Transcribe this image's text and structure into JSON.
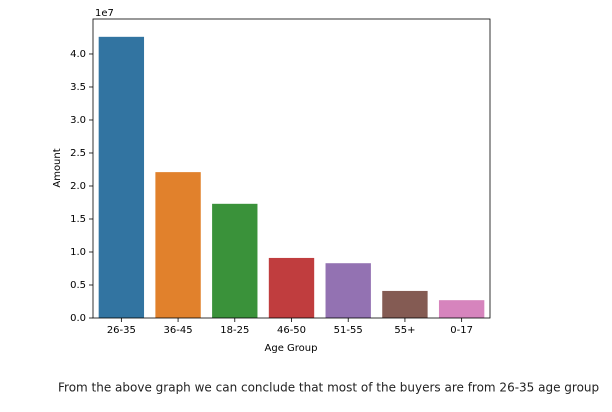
{
  "chart_data": {
    "type": "bar",
    "x_label": "Age Group",
    "y_label": "Amount",
    "y_offset_label": "1e7",
    "categories": [
      "26-35",
      "36-45",
      "18-25",
      "46-50",
      "51-55",
      "55+",
      "0-17"
    ],
    "values": [
      4.26,
      2.21,
      1.73,
      0.91,
      0.83,
      0.41,
      0.27
    ],
    "colors": [
      "#3274a1",
      "#e1812c",
      "#3a923a",
      "#c03d3e",
      "#9372b2",
      "#845b53",
      "#d684bd"
    ],
    "ylim": [
      0,
      4.53
    ],
    "yticks": [
      {
        "value": 0,
        "label": "0.0"
      },
      {
        "value": 0.5,
        "label": "0.5"
      },
      {
        "value": 1,
        "label": "1.0"
      },
      {
        "value": 1.5,
        "label": "1.5"
      },
      {
        "value": 2,
        "label": "2.0"
      },
      {
        "value": 2.5,
        "label": "2.5"
      },
      {
        "value": 3,
        "label": "3.0"
      },
      {
        "value": 3.5,
        "label": "3.5"
      },
      {
        "value": 4,
        "label": "4.0"
      }
    ],
    "grid": false
  },
  "caption": "From the above graph we can conclude that most of the buyers are from 26-35 age group"
}
